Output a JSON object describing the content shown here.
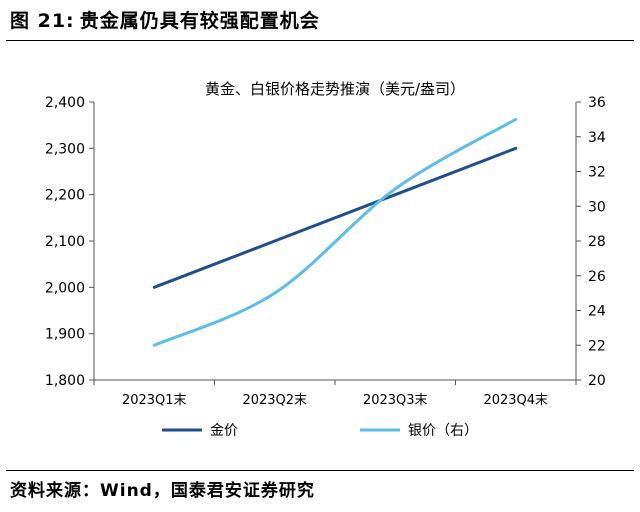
{
  "figure": {
    "label": "图 21:",
    "title": "贵金属仍具有较强配置机会",
    "source": "资料来源：Wind，国泰君安证券研究"
  },
  "chart_data": {
    "type": "line",
    "title": "黄金、白银价格走势推演（美元/盎司）",
    "categories": [
      "2023Q1末",
      "2023Q2末",
      "2023Q3末",
      "2023Q4末"
    ],
    "series": [
      {
        "name": "金价",
        "axis": "left",
        "color": "#1f4e8c",
        "values": [
          2000,
          2100,
          2200,
          2300
        ]
      },
      {
        "name": "银价（右）",
        "axis": "right",
        "color": "#5bbde8",
        "values": [
          22,
          25,
          31,
          35
        ]
      }
    ],
    "y_left": {
      "min": 1800,
      "max": 2400,
      "ticks": [
        "1,800",
        "1,900",
        "2,000",
        "2,100",
        "2,200",
        "2,300",
        "2,400"
      ]
    },
    "y_right": {
      "min": 20,
      "max": 36,
      "ticks": [
        "20",
        "22",
        "24",
        "26",
        "28",
        "30",
        "32",
        "34",
        "36"
      ]
    },
    "grid": false,
    "legend_position": "bottom"
  }
}
